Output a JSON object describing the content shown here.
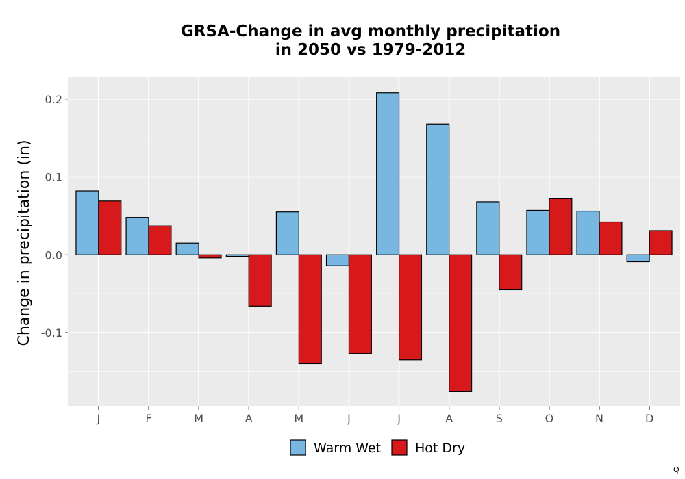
{
  "chart_data": {
    "type": "bar",
    "title": [
      "GRSA-Change in avg monthly precipitation",
      "in 2050 vs 1979-2012"
    ],
    "xlabel": "",
    "ylabel": "Change in precipitation (in)",
    "categories": [
      "J",
      "F",
      "M",
      "A",
      "M",
      "J",
      "J",
      "A",
      "S",
      "O",
      "N",
      "D"
    ],
    "series": [
      {
        "name": "Warm Wet",
        "color": "#77b7e2",
        "values": [
          0.082,
          0.048,
          0.015,
          -0.002,
          0.055,
          -0.014,
          0.208,
          0.168,
          0.068,
          0.057,
          0.056,
          -0.009
        ]
      },
      {
        "name": "Hot Dry",
        "color": "#d7191c",
        "values": [
          0.069,
          0.037,
          -0.004,
          -0.066,
          -0.14,
          -0.127,
          -0.135,
          -0.176,
          -0.045,
          0.072,
          0.042,
          0.031
        ]
      }
    ],
    "ylim": [
      -0.195,
      0.228
    ],
    "yticks": [
      0.2,
      0.1,
      0.0,
      -0.1
    ],
    "ytick_labels": [
      "0.2",
      "0.1",
      "0.0",
      "-0.1"
    ],
    "grid": true,
    "legend_position": "bottom"
  },
  "corner_mark": "Q"
}
